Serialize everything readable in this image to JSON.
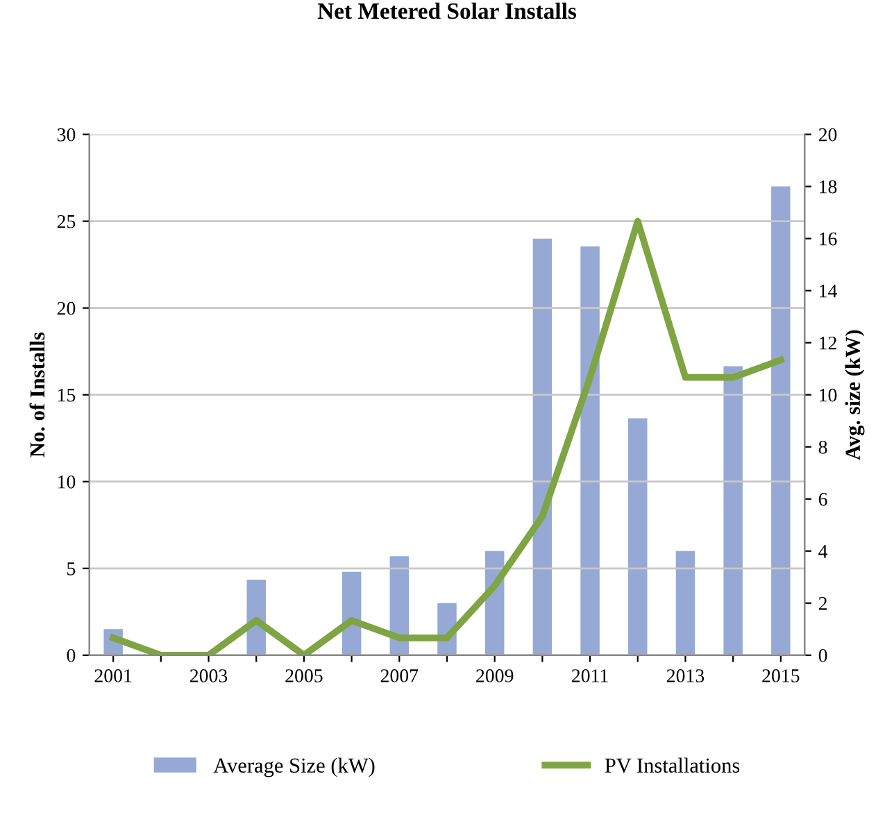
{
  "chart_data": {
    "type": "bar",
    "title": "Net Metered Solar Installs",
    "ylabel": "No. of Installs",
    "y2label": "Avg. size (kW)",
    "categories": [
      "2001",
      null,
      "2003",
      null,
      "2005",
      null,
      "2007",
      null,
      "2009",
      null,
      "2011",
      null,
      "2013",
      null,
      "2015"
    ],
    "series": [
      {
        "name": "Average Size (kW)",
        "axis": "y2",
        "color": "#95a9d4",
        "values": [
          1.0,
          0,
          0,
          2.9,
          0,
          3.2,
          3.8,
          2.0,
          4.0,
          16.0,
          15.7,
          9.1,
          4.0,
          11.1,
          18.0
        ]
      },
      {
        "name": "PV Installations",
        "type": "line",
        "axis": "y",
        "color": "#7fa443",
        "values": [
          1,
          0,
          0,
          2,
          0,
          2,
          1,
          1,
          4,
          8,
          16,
          25,
          16,
          16,
          17
        ]
      }
    ],
    "ylim": [
      0,
      30
    ],
    "yticks": [
      0,
      5,
      10,
      15,
      20,
      25,
      30
    ],
    "y2lim": [
      0,
      20
    ],
    "y2ticks": [
      0,
      2,
      4,
      6,
      8,
      10,
      12,
      14,
      16,
      18,
      20
    ],
    "grid": "y",
    "legend": "bottom",
    "marker": "none",
    "line_style": "solid"
  }
}
